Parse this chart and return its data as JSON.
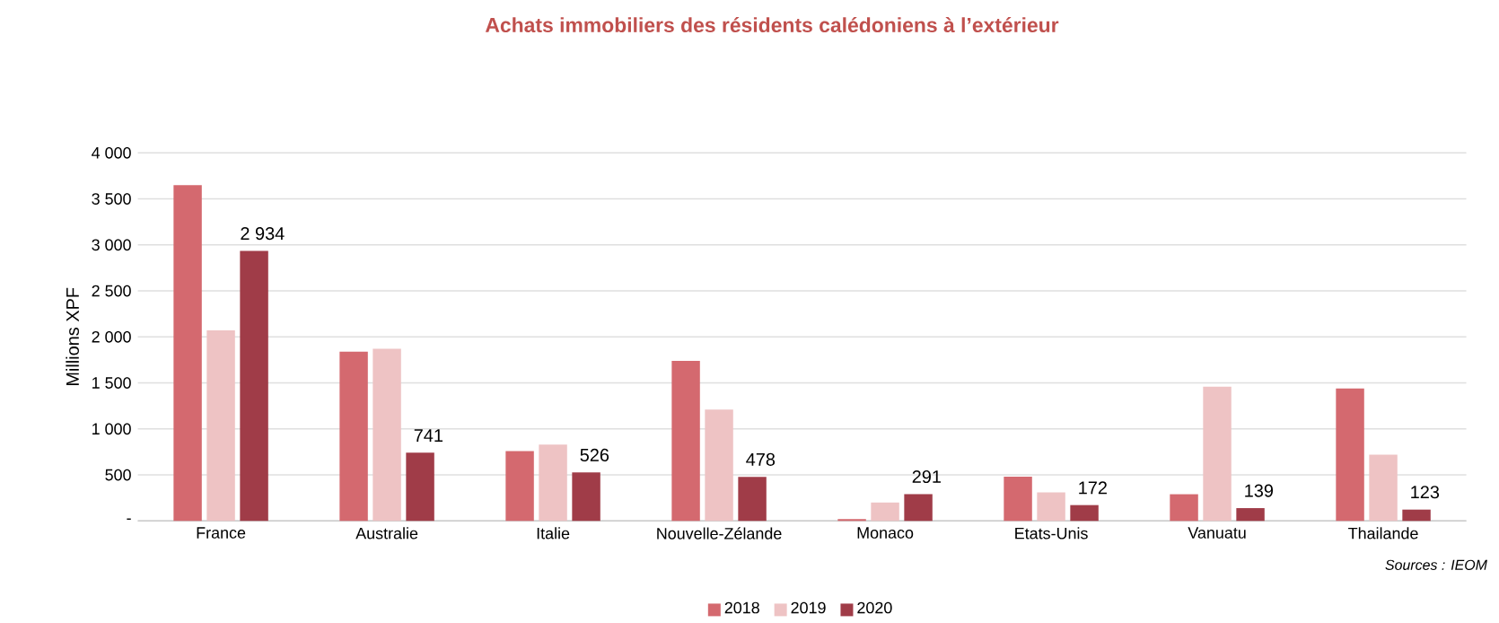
{
  "chart_data": {
    "type": "bar",
    "title": "Achats immobiliers des résidents calédoniens à l’extérieur",
    "ylabel": "Millions XPF",
    "categories": [
      "France",
      "Australie",
      "Italie",
      "Nouvelle-Zélande",
      "Monaco",
      "Etats-Unis",
      "Vanuatu",
      "Thailande"
    ],
    "series": [
      {
        "name": "2018",
        "color": "#d4696f",
        "values": [
          3650,
          1840,
          760,
          1740,
          20,
          480,
          290,
          1440
        ]
      },
      {
        "name": "2019",
        "color": "#eec3c4",
        "values": [
          2070,
          1870,
          830,
          1210,
          200,
          310,
          1460,
          720
        ]
      },
      {
        "name": "2020",
        "color": "#a03c48",
        "values": [
          2934,
          741,
          526,
          478,
          291,
          172,
          139,
          123
        ],
        "value_labels": [
          "2 934",
          "741",
          "526",
          "478",
          "291",
          "172",
          "139",
          "123"
        ]
      }
    ],
    "ylim": [
      0,
      4000
    ],
    "yticks": [
      {
        "value": 0,
        "label": "-"
      },
      {
        "value": 500,
        "label": "500"
      },
      {
        "value": 1000,
        "label": "1 000"
      },
      {
        "value": 1500,
        "label": "1 500"
      },
      {
        "value": 2000,
        "label": "2 000"
      },
      {
        "value": 2500,
        "label": "2 500"
      },
      {
        "value": 3000,
        "label": "3 000"
      },
      {
        "value": 3500,
        "label": "3 500"
      },
      {
        "value": 4000,
        "label": "4 000"
      }
    ],
    "grid": "y",
    "legend": "bottom",
    "annotations": [
      "Sources : IEOM"
    ]
  }
}
